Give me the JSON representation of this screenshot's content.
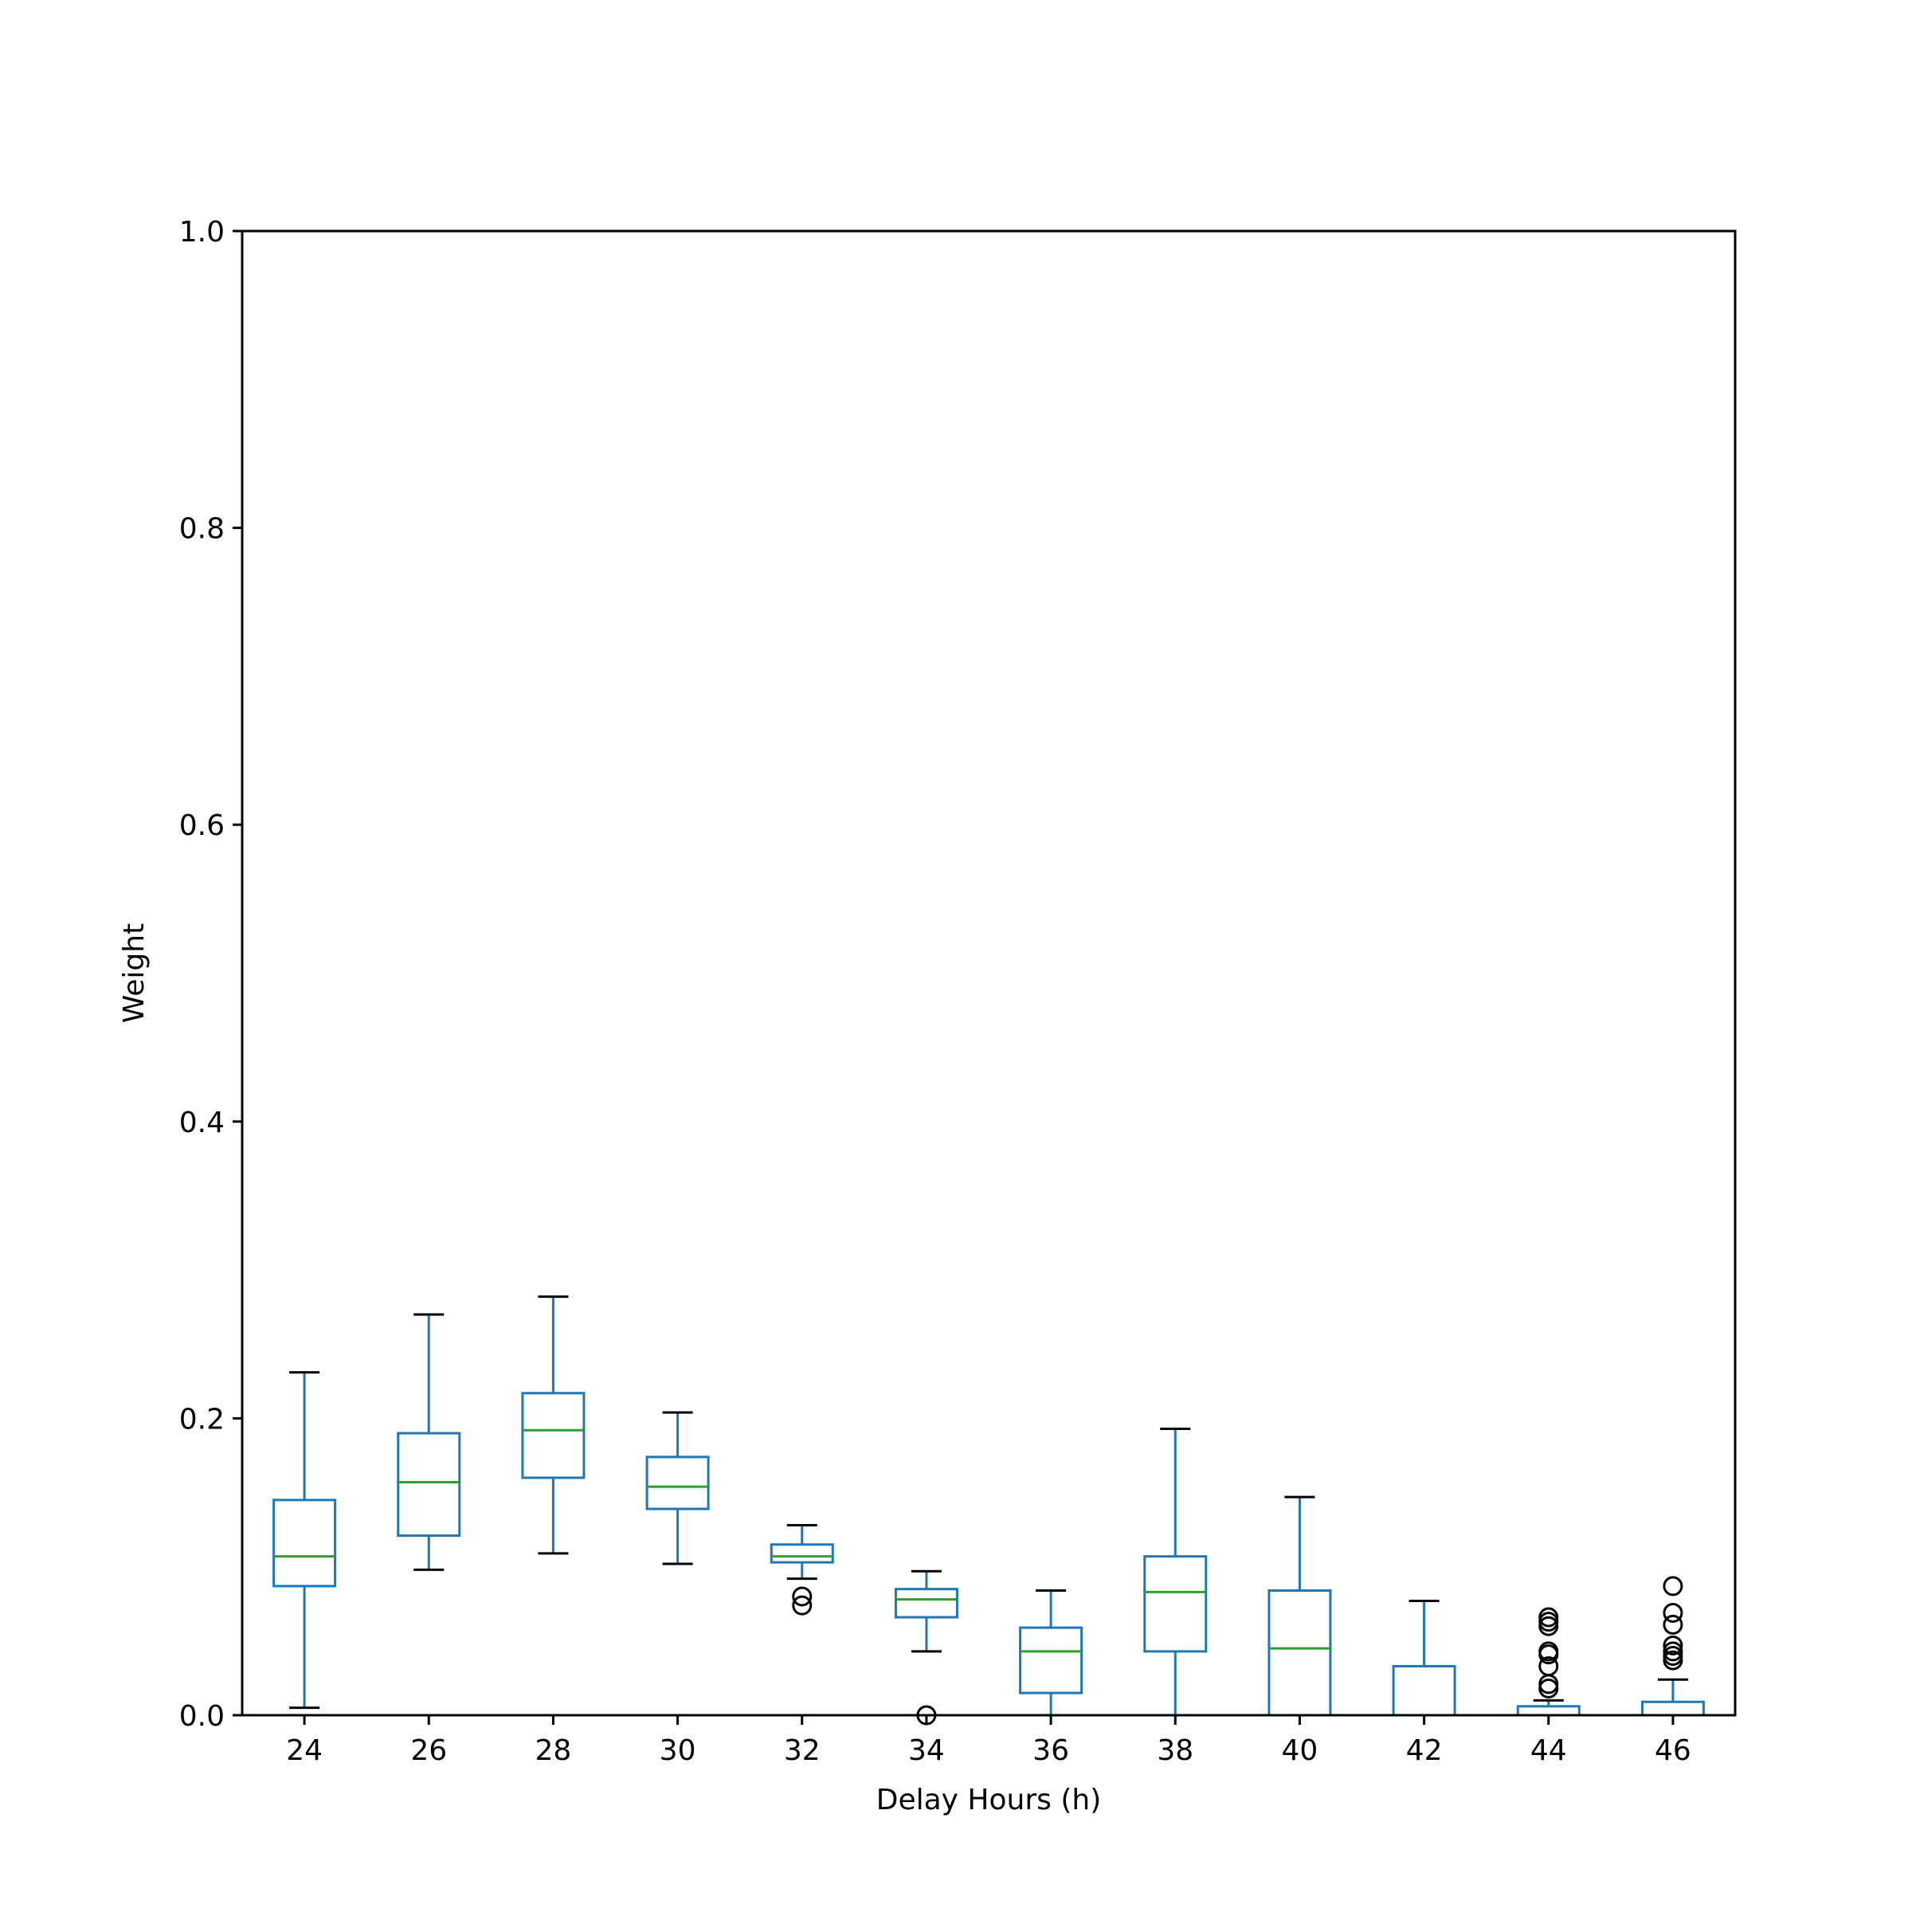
{
  "chart_data": {
    "type": "box",
    "xlabel": "Delay Hours (h)",
    "ylabel": "Weight",
    "ylim": [
      0.0,
      1.0
    ],
    "yticks": [
      "0.0",
      "0.2",
      "0.4",
      "0.6",
      "0.8",
      "1.0"
    ],
    "grid": false,
    "categories": [
      "24",
      "26",
      "28",
      "30",
      "32",
      "34",
      "36",
      "38",
      "40",
      "42",
      "44",
      "46"
    ],
    "boxes": [
      {
        "category": "24",
        "whisker_low": 0.005,
        "q1": 0.087,
        "median": 0.107,
        "q3": 0.145,
        "whisker_high": 0.231,
        "outliers": []
      },
      {
        "category": "26",
        "whisker_low": 0.098,
        "q1": 0.121,
        "median": 0.157,
        "q3": 0.19,
        "whisker_high": 0.27,
        "outliers": []
      },
      {
        "category": "28",
        "whisker_low": 0.109,
        "q1": 0.16,
        "median": 0.192,
        "q3": 0.217,
        "whisker_high": 0.282,
        "outliers": []
      },
      {
        "category": "30",
        "whisker_low": 0.102,
        "q1": 0.139,
        "median": 0.154,
        "q3": 0.174,
        "whisker_high": 0.204,
        "outliers": []
      },
      {
        "category": "32",
        "whisker_low": 0.092,
        "q1": 0.103,
        "median": 0.107,
        "q3": 0.115,
        "whisker_high": 0.128,
        "outliers": [
          0.074,
          0.08
        ]
      },
      {
        "category": "34",
        "whisker_low": 0.043,
        "q1": 0.066,
        "median": 0.078,
        "q3": 0.085,
        "whisker_high": 0.097,
        "outliers": [
          0.0
        ]
      },
      {
        "category": "36",
        "whisker_low": 0.0,
        "q1": 0.015,
        "median": 0.043,
        "q3": 0.059,
        "whisker_high": 0.084,
        "outliers": []
      },
      {
        "category": "38",
        "whisker_low": 0.0,
        "q1": 0.043,
        "median": 0.083,
        "q3": 0.107,
        "whisker_high": 0.193,
        "outliers": []
      },
      {
        "category": "40",
        "whisker_low": 0.0,
        "q1": 0.0,
        "median": 0.045,
        "q3": 0.084,
        "whisker_high": 0.147,
        "outliers": []
      },
      {
        "category": "42",
        "whisker_low": 0.0,
        "q1": 0.0,
        "median": 0.0,
        "q3": 0.033,
        "whisker_high": 0.077,
        "outliers": []
      },
      {
        "category": "44",
        "whisker_low": 0.0,
        "q1": 0.0,
        "median": 0.0,
        "q3": 0.006,
        "whisker_high": 0.01,
        "outliers": [
          0.018,
          0.021,
          0.033,
          0.041,
          0.043,
          0.06,
          0.063,
          0.066
        ]
      },
      {
        "category": "46",
        "whisker_low": 0.0,
        "q1": 0.0,
        "median": 0.0,
        "q3": 0.009,
        "whisker_high": 0.024,
        "outliers": [
          0.037,
          0.04,
          0.043,
          0.047,
          0.061,
          0.069,
          0.087
        ]
      }
    ],
    "colors": {
      "box": "#1f77b4",
      "median": "#2ca02c",
      "whisker_cap": "#000000",
      "outlier": "#000000",
      "axes": "#000000"
    }
  }
}
